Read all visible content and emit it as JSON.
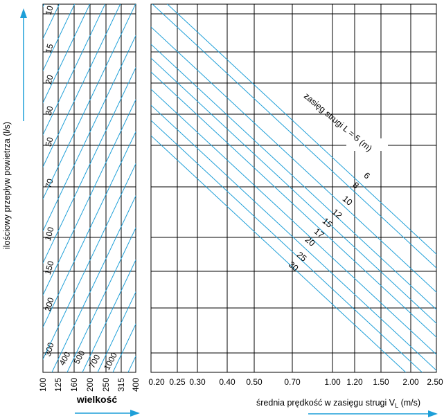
{
  "colors": {
    "accent": "#1e9fd8",
    "grid": "#000000",
    "text": "#000000"
  },
  "chart_data": [
    {
      "type": "line",
      "panel": "left",
      "ylabel": "ilościowy przepływ powietrza (l/s)",
      "xlabel": "wielkość",
      "y_ticks": [
        "10",
        "15",
        "20",
        "30",
        "50",
        "70",
        "100",
        "150",
        "200",
        "300"
      ],
      "x_ticks": [
        "100",
        "125",
        "160",
        "200",
        "250",
        "315",
        "400"
      ],
      "line_labels": [
        "400",
        "500",
        "700",
        "1000"
      ],
      "grid": true,
      "scale": "log-log"
    },
    {
      "type": "line",
      "panel": "right",
      "xlabel_main": "średnia prędkość w zasięgu strugi V",
      "xlabel_sub": "L",
      "xlabel_unit": " (m/s)",
      "x_ticks": [
        "0.20",
        "0.25",
        "0.30",
        "0.40",
        "0.50",
        "0.70",
        "1.00",
        "1.20",
        "1.50",
        "2.00",
        "2.50"
      ],
      "series_title": "zasięg strugi L = 5 (m)",
      "series_labels": [
        "6",
        "8",
        "10",
        "12",
        "15",
        "17",
        "20",
        "25",
        "30"
      ],
      "grid": true,
      "scale": "log-log"
    }
  ]
}
